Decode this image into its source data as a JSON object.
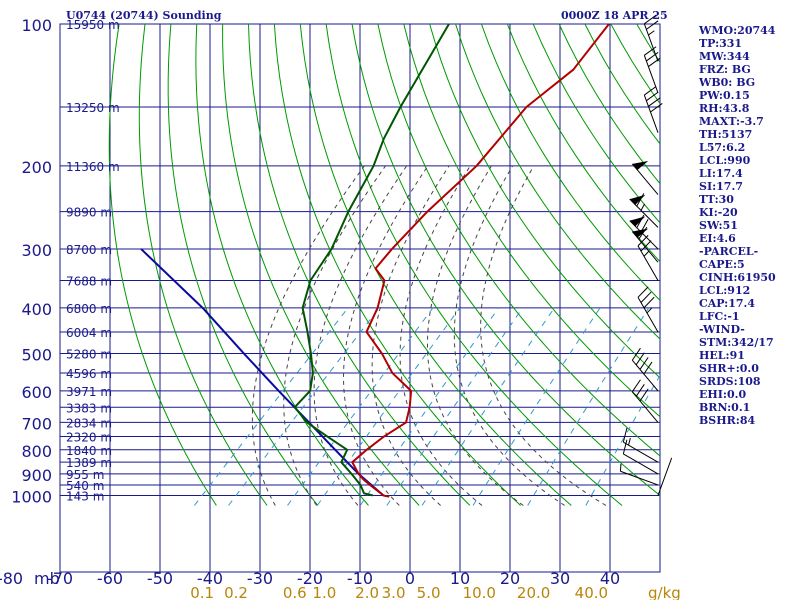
{
  "header": {
    "left": "U0744 (20744) Sounding",
    "right": "0000Z 18 APR 25"
  },
  "indices": [
    "WMO:20744",
    "TP:331",
    "MW:344",
    "FRZ: BG",
    "WB0: BG",
    "PW:0.15",
    "RH:43.8",
    "MAXT:-3.7",
    "TH:5137",
    "L57:6.2",
    "LCL:990",
    "LI:17.4",
    "SI:17.7",
    "TT:30",
    "KI:-20",
    "SW:51",
    "EI:4.6",
    "-PARCEL-",
    "CAPE:5",
    "CINH:61950",
    "LCL:912",
    "CAP:17.4",
    "LFC:-1",
    "-WIND-",
    "STM:342/17",
    "HEL:91",
    "SHR+:0.0",
    "SRDS:108",
    "EHI:0.0",
    "BRN:0.1",
    "BSHR:84"
  ],
  "colors": {
    "grid": "#1a1a8c",
    "temperature": "#b30000",
    "dewpoint": "#005500",
    "parcel": "#0a0aa0",
    "dry_adiabat": "#009900",
    "moist_adiabat": "#444444",
    "mixing_ratio": "#3399cc",
    "mixing_label": "#b8860b"
  },
  "chart_data": {
    "type": "skew-t",
    "pressure_levels": [
      100,
      200,
      300,
      400,
      500,
      600,
      700,
      800,
      900,
      1000
    ],
    "height_labels": [
      {
        "p": 1000,
        "label": "143 m"
      },
      {
        "p": 950,
        "label": "540 m"
      },
      {
        "p": 900,
        "label": "955 m"
      },
      {
        "p": 850,
        "label": "1389 m"
      },
      {
        "p": 800,
        "label": "1840 m"
      },
      {
        "p": 750,
        "label": "2320 m"
      },
      {
        "p": 700,
        "label": "2834 m"
      },
      {
        "p": 650,
        "label": "3383 m"
      },
      {
        "p": 600,
        "label": "3971 m"
      },
      {
        "p": 550,
        "label": "4596 m"
      },
      {
        "p": 500,
        "label": "5280 m"
      },
      {
        "p": 450,
        "label": "6004 m"
      },
      {
        "p": 400,
        "label": "6800 m"
      },
      {
        "p": 350,
        "label": "7688 m"
      },
      {
        "p": 300,
        "label": "8700 m"
      },
      {
        "p": 250,
        "label": "9890 m"
      },
      {
        "p": 200,
        "label": "11360 m"
      },
      {
        "p": 150,
        "label": "13250 m"
      },
      {
        "p": 100,
        "label": "15950 m"
      }
    ],
    "temp_ticks": [
      "-80",
      "-70",
      "-60",
      "-50",
      "-40",
      "-30",
      "-20",
      "-10",
      "0",
      "10",
      "20",
      "30",
      "40"
    ],
    "x_unit": "mb",
    "mixing_ratio_ticks": [
      "0.1",
      "0.2",
      "0.6",
      "1.0",
      "2.0",
      "3.0",
      "5.0",
      "10.0",
      "20.0",
      "40.0"
    ],
    "mixing_ratio_unit": "g/kg",
    "temperature": [
      {
        "p": 1006,
        "t": -3.9
      },
      {
        "p": 1000,
        "t": -5.3
      },
      {
        "p": 950,
        "t": -10.1
      },
      {
        "p": 925,
        "t": -12.5
      },
      {
        "p": 900,
        "t": -14.6
      },
      {
        "p": 850,
        "t": -18.2
      },
      {
        "p": 800,
        "t": -17.8
      },
      {
        "p": 750,
        "t": -17.0
      },
      {
        "p": 700,
        "t": -15.4
      },
      {
        "p": 650,
        "t": -17.7
      },
      {
        "p": 600,
        "t": -20.7
      },
      {
        "p": 550,
        "t": -28.0
      },
      {
        "p": 500,
        "t": -34.0
      },
      {
        "p": 450,
        "t": -41.4
      },
      {
        "p": 400,
        "t": -44.0
      },
      {
        "p": 350,
        "t": -48.1
      },
      {
        "p": 330,
        "t": -52.3
      },
      {
        "p": 300,
        "t": -52.9
      },
      {
        "p": 250,
        "t": -53.3
      },
      {
        "p": 200,
        "t": -52.6
      },
      {
        "p": 150,
        "t": -54.4
      },
      {
        "p": 125,
        "t": -52.5
      },
      {
        "p": 100,
        "t": -54.5
      }
    ],
    "dewpoint": [
      {
        "p": 1000,
        "t": -7.4
      },
      {
        "p": 990,
        "t": -9.6
      },
      {
        "p": 950,
        "t": -12.0
      },
      {
        "p": 900,
        "t": -16.0
      },
      {
        "p": 850,
        "t": -20.4
      },
      {
        "p": 800,
        "t": -21.7
      },
      {
        "p": 750,
        "t": -28.3
      },
      {
        "p": 700,
        "t": -35.2
      },
      {
        "p": 650,
        "t": -40.7
      },
      {
        "p": 600,
        "t": -40.9
      },
      {
        "p": 550,
        "t": -43.9
      },
      {
        "p": 500,
        "t": -48.2
      },
      {
        "p": 450,
        "t": -53.2
      },
      {
        "p": 400,
        "t": -59.0
      },
      {
        "p": 350,
        "t": -62.9
      },
      {
        "p": 300,
        "t": -65.0
      },
      {
        "p": 250,
        "t": -69.1
      },
      {
        "p": 200,
        "t": -73.2
      },
      {
        "p": 175,
        "t": -76.6
      },
      {
        "p": 150,
        "t": -79.6
      },
      {
        "p": 100,
        "t": -86.5
      }
    ],
    "parcel": [
      {
        "p": 1000,
        "t": -5.3
      },
      {
        "p": 900,
        "t": -14.6
      },
      {
        "p": 800,
        "t": -24.1
      },
      {
        "p": 700,
        "t": -34.8
      },
      {
        "p": 600,
        "t": -47.2
      },
      {
        "p": 500,
        "t": -61.6
      },
      {
        "p": 400,
        "t": -79.0
      },
      {
        "p": 300,
        "t": -103.1
      }
    ],
    "wind_barbs": [
      {
        "p": 1000,
        "dir": 20,
        "spd": 0
      },
      {
        "p": 950,
        "dir": 290,
        "spd": 5
      },
      {
        "p": 900,
        "dir": 300,
        "spd": 10
      },
      {
        "p": 850,
        "dir": 300,
        "spd": 15
      },
      {
        "p": 700,
        "dir": 320,
        "spd": 30
      },
      {
        "p": 600,
        "dir": 320,
        "spd": 40
      },
      {
        "p": 450,
        "dir": 330,
        "spd": 35
      },
      {
        "p": 350,
        "dir": 330,
        "spd": 25
      },
      {
        "p": 320,
        "dir": 320,
        "spd": 60
      },
      {
        "p": 300,
        "dir": 315,
        "spd": 70
      },
      {
        "p": 270,
        "dir": 315,
        "spd": 65
      },
      {
        "p": 230,
        "dir": 320,
        "spd": 50
      },
      {
        "p": 170,
        "dir": 340,
        "spd": 40
      },
      {
        "p": 140,
        "dir": 340,
        "spd": 30
      },
      {
        "p": 120,
        "dir": 340,
        "spd": 25
      }
    ]
  }
}
